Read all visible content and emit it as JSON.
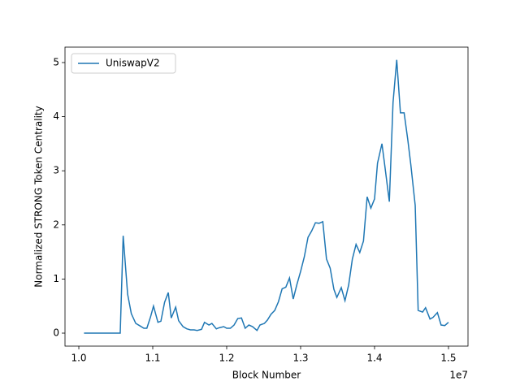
{
  "chart_data": {
    "type": "line",
    "xlabel": "Block Number",
    "ylabel": "Normalized STRONG Token Centrality",
    "x_offset_label": "1e7",
    "xlim": [
      9813000,
      15264000
    ],
    "ylim": [
      -0.24,
      5.285
    ],
    "xticks": [
      {
        "value": 10000000,
        "label": "1.0"
      },
      {
        "value": 11000000,
        "label": "1.1"
      },
      {
        "value": 12000000,
        "label": "1.2"
      },
      {
        "value": 13000000,
        "label": "1.3"
      },
      {
        "value": 14000000,
        "label": "1.4"
      },
      {
        "value": 15000000,
        "label": "1.5"
      }
    ],
    "yticks": [
      0,
      1,
      2,
      3,
      4,
      5
    ],
    "legend": "upper left",
    "x": [
      10070000,
      10200000,
      10350000,
      10500000,
      10560000,
      10600000,
      10660000,
      10710000,
      10770000,
      10820000,
      10880000,
      10920000,
      10970000,
      11010000,
      11070000,
      11110000,
      11160000,
      11210000,
      11250000,
      11310000,
      11350000,
      11410000,
      11460000,
      11510000,
      11560000,
      11600000,
      11660000,
      11700000,
      11760000,
      11800000,
      11860000,
      11900000,
      11960000,
      12000000,
      12050000,
      12100000,
      12150000,
      12200000,
      12250000,
      12300000,
      12350000,
      12410000,
      12450000,
      12510000,
      12550000,
      12600000,
      12650000,
      12700000,
      12750000,
      12800000,
      12850000,
      12900000,
      12950000,
      13000000,
      13050000,
      13100000,
      13150000,
      13200000,
      13250000,
      13300000,
      13350000,
      13400000,
      13450000,
      13490000,
      13550000,
      13600000,
      13650000,
      13700000,
      13750000,
      13800000,
      13850000,
      13900000,
      13950000,
      14000000,
      14040000,
      14100000,
      14140000,
      14200000,
      14250000,
      14300000,
      14350000,
      14400000,
      14450000,
      14490000,
      14550000,
      14590000,
      14650000,
      14690000,
      14750000,
      14790000,
      14850000,
      14900000,
      14950000,
      15000000
    ],
    "series": [
      {
        "name": "UniswapV2",
        "color": "#1f77b4",
        "values": [
          0,
          0,
          0,
          0,
          0,
          1.8,
          0.72,
          0.36,
          0.18,
          0.14,
          0.09,
          0.09,
          0.3,
          0.5,
          0.2,
          0.22,
          0.57,
          0.75,
          0.28,
          0.48,
          0.23,
          0.12,
          0.08,
          0.06,
          0.06,
          0.05,
          0.07,
          0.2,
          0.15,
          0.18,
          0.08,
          0.1,
          0.12,
          0.09,
          0.09,
          0.15,
          0.27,
          0.28,
          0.09,
          0.15,
          0.12,
          0.05,
          0.15,
          0.18,
          0.24,
          0.35,
          0.42,
          0.58,
          0.82,
          0.85,
          1.02,
          0.63,
          0.9,
          1.14,
          1.41,
          1.77,
          1.89,
          2.04,
          2.03,
          2.06,
          1.37,
          1.2,
          0.81,
          0.66,
          0.84,
          0.6,
          0.89,
          1.37,
          1.64,
          1.49,
          1.7,
          2.52,
          2.31,
          2.48,
          3.14,
          3.5,
          3.08,
          2.43,
          4.26,
          5.05,
          4.07,
          4.07,
          3.57,
          3.12,
          2.36,
          0.42,
          0.39,
          0.47,
          0.26,
          0.29,
          0.38,
          0.15,
          0.14,
          0.2
        ]
      }
    ]
  }
}
